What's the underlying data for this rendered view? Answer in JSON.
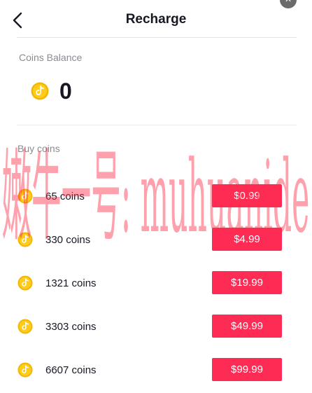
{
  "header": {
    "title": "Recharge",
    "back_icon": "chevron-left-icon",
    "close_icon": "close-icon"
  },
  "balance": {
    "label": "Coins Balance",
    "value": "0",
    "icon": "coin-icon"
  },
  "buy": {
    "label": "Buy coins",
    "packages": [
      {
        "coins": "65 coins",
        "price": "$0.99"
      },
      {
        "coins": "330 coins",
        "price": "$4.99"
      },
      {
        "coins": "1321 coins",
        "price": "$19.99"
      },
      {
        "coins": "3303 coins",
        "price": "$49.99"
      },
      {
        "coins": "6607 coins",
        "price": "$99.99"
      }
    ]
  },
  "watermark_text": "嫩牛一号: muhuanide",
  "colors": {
    "accent": "#fe2c55",
    "coin": "#f7c600",
    "secondary_text": "#8a8b91"
  }
}
